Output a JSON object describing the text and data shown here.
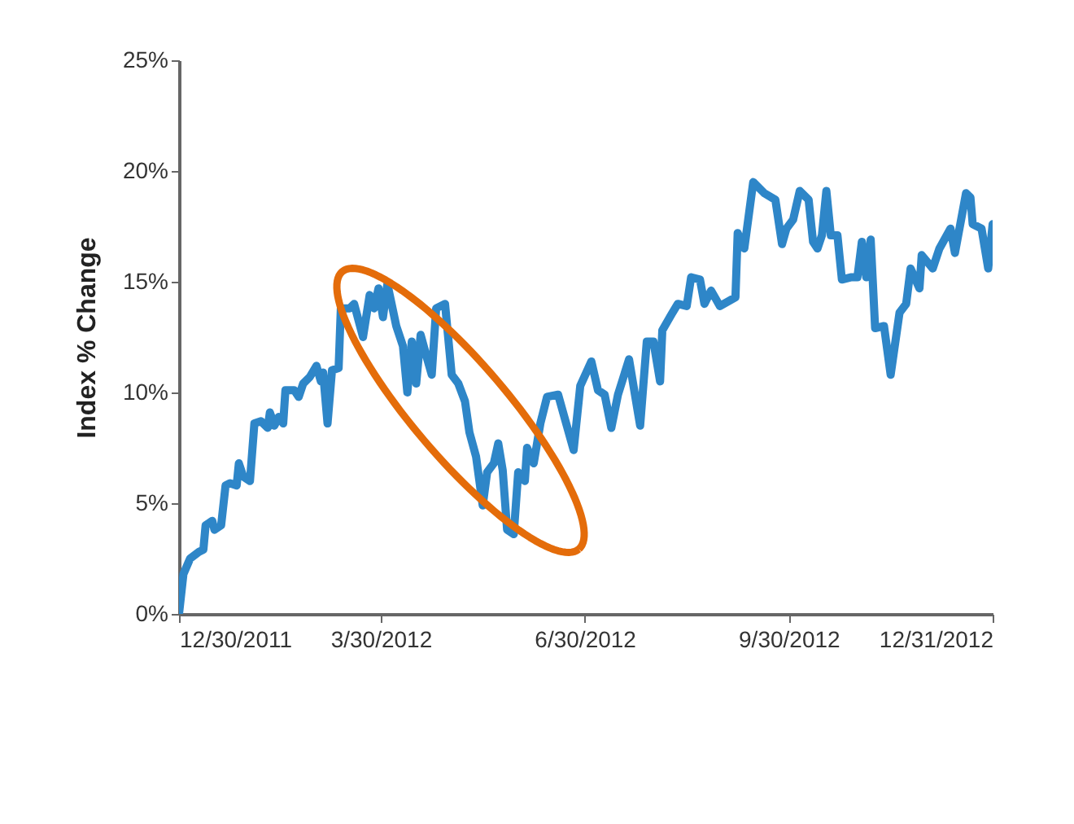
{
  "chart_data": {
    "type": "line",
    "ylabel": "Index % Change",
    "x": [
      "2011-12-30",
      "2012-01-01",
      "2012-01-04",
      "2012-01-08",
      "2012-01-10",
      "2012-01-11",
      "2012-01-14",
      "2012-01-15",
      "2012-01-18",
      "2012-01-20",
      "2012-01-22",
      "2012-01-25",
      "2012-01-26",
      "2012-01-28",
      "2012-01-31",
      "2012-02-02",
      "2012-02-05",
      "2012-02-08",
      "2012-02-09",
      "2012-02-11",
      "2012-02-13",
      "2012-02-15",
      "2012-02-16",
      "2012-02-20",
      "2012-02-22",
      "2012-02-24",
      "2012-02-27",
      "2012-03-01",
      "2012-03-03",
      "2012-03-04",
      "2012-03-06",
      "2012-03-08",
      "2012-03-11",
      "2012-03-12",
      "2012-03-16",
      "2012-03-18",
      "2012-03-22",
      "2012-03-25",
      "2012-03-27",
      "2012-03-29",
      "2012-03-31",
      "2012-04-02",
      "2012-04-06",
      "2012-04-09",
      "2012-04-11",
      "2012-04-13",
      "2012-04-15",
      "2012-04-17",
      "2012-04-20",
      "2012-04-22",
      "2012-04-24",
      "2012-04-28",
      "2012-05-01",
      "2012-05-04",
      "2012-05-07",
      "2012-05-09",
      "2012-05-12",
      "2012-05-15",
      "2012-05-17",
      "2012-05-20",
      "2012-05-22",
      "2012-05-24",
      "2012-05-26",
      "2012-05-29",
      "2012-05-31",
      "2012-06-03",
      "2012-06-04",
      "2012-06-07",
      "2012-06-10",
      "2012-06-13",
      "2012-06-18",
      "2012-06-25",
      "2012-06-28",
      "2012-07-03",
      "2012-07-06",
      "2012-07-09",
      "2012-07-12",
      "2012-07-15",
      "2012-07-20",
      "2012-07-25",
      "2012-07-28",
      "2012-07-31",
      "2012-08-03",
      "2012-08-04",
      "2012-08-08",
      "2012-08-11",
      "2012-08-15",
      "2012-08-17",
      "2012-08-21",
      "2012-08-23",
      "2012-08-26",
      "2012-08-30",
      "2012-09-06",
      "2012-09-07",
      "2012-09-10",
      "2012-09-14",
      "2012-09-19",
      "2012-09-24",
      "2012-09-27",
      "2012-09-29",
      "2012-10-02",
      "2012-10-05",
      "2012-10-09",
      "2012-10-11",
      "2012-10-13",
      "2012-10-15",
      "2012-10-17",
      "2012-10-19",
      "2012-10-22",
      "2012-10-24",
      "2012-10-28",
      "2012-10-31",
      "2012-11-02",
      "2012-11-04",
      "2012-11-06",
      "2012-11-08",
      "2012-11-12",
      "2012-11-15",
      "2012-11-19",
      "2012-11-22",
      "2012-11-24",
      "2012-11-28",
      "2012-11-29",
      "2012-12-04",
      "2012-12-07",
      "2012-12-12",
      "2012-12-14",
      "2012-12-19",
      "2012-12-21",
      "2012-12-22",
      "2012-12-26",
      "2012-12-29",
      "2012-12-31"
    ],
    "series": [
      {
        "color": "#2e86c8",
        "values": [
          0,
          1.8,
          2.5,
          2.8,
          2.9,
          4.0,
          4.2,
          3.8,
          4.0,
          5.8,
          5.9,
          5.8,
          6.8,
          6.2,
          6.0,
          8.6,
          8.7,
          8.4,
          9.1,
          8.5,
          8.9,
          8.6,
          10.1,
          10.1,
          9.8,
          10.4,
          10.7,
          11.2,
          10.5,
          10.9,
          8.6,
          11.0,
          11.1,
          13.8,
          13.8,
          14.0,
          12.5,
          14.4,
          13.8,
          14.7,
          13.4,
          14.9,
          13.0,
          12.1,
          10.0,
          12.3,
          10.4,
          12.6,
          11.5,
          10.8,
          13.8,
          14.0,
          10.8,
          10.4,
          9.6,
          8.2,
          7.1,
          4.9,
          6.4,
          6.8,
          7.7,
          6.5,
          3.8,
          3.6,
          6.4,
          6.0,
          7.5,
          6.8,
          8.6,
          9.8,
          9.9,
          7.4,
          10.3,
          11.4,
          10.1,
          9.9,
          8.4,
          9.9,
          11.5,
          8.5,
          12.3,
          12.3,
          10.5,
          12.8,
          13.5,
          14.0,
          13.9,
          15.2,
          15.1,
          14.0,
          14.6,
          13.9,
          14.3,
          17.2,
          16.5,
          19.5,
          19.0,
          18.7,
          16.7,
          17.4,
          17.8,
          19.1,
          18.7,
          16.8,
          16.5,
          17.1,
          19.1,
          17.1,
          17.1,
          15.1,
          15.2,
          15.2,
          16.8,
          15.2,
          16.9,
          12.9,
          13.0,
          10.8,
          13.6,
          14.0,
          15.6,
          14.7,
          16.2,
          15.6,
          16.5,
          17.4,
          16.3,
          19.0,
          18.8,
          17.6,
          17.4,
          15.6,
          17.6
        ]
      }
    ],
    "xlim": [
      "2011-12-30",
      "2012-12-31"
    ],
    "xticks": [
      {
        "value": "2011-12-30",
        "label": "12/30/2011"
      },
      {
        "value": "2012-03-30",
        "label": "3/30/2012"
      },
      {
        "value": "2012-06-30",
        "label": "6/30/2012"
      },
      {
        "value": "2012-09-30",
        "label": "9/30/2012"
      },
      {
        "value": "2012-12-31",
        "label": "12/31/2012"
      }
    ],
    "ylim": [
      0,
      25
    ],
    "yticks": [
      {
        "value": 0,
        "label": "0%"
      },
      {
        "value": 5,
        "label": "5%"
      },
      {
        "value": 10,
        "label": "10%"
      },
      {
        "value": 15,
        "label": "15%"
      },
      {
        "value": 20,
        "label": "20%"
      },
      {
        "value": 25,
        "label": "25%"
      }
    ],
    "grid": false,
    "legend": false,
    "marker": "none",
    "line_style": "solid"
  }
}
